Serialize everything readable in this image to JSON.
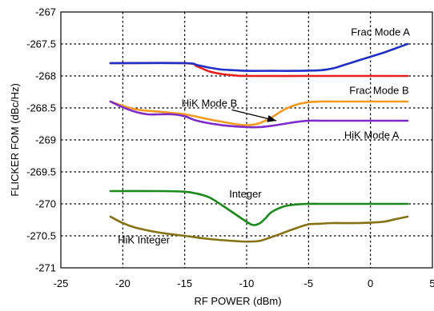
{
  "chart_data": {
    "type": "line",
    "xlabel": "RF POWER (dBm)",
    "ylabel": "FLICKER FOM (dBc/Hz)",
    "xlim": [
      -25,
      5
    ],
    "ylim": [
      -271,
      -267
    ],
    "xticks": [
      -25,
      -20,
      -15,
      -10,
      -5,
      0,
      5
    ],
    "yticks": [
      -271,
      -270.5,
      -270,
      -269.5,
      -269,
      -268.5,
      -268,
      -267.5,
      -267
    ],
    "xtick_labels": [
      "-25",
      "-20",
      "-15",
      "-10",
      "-5",
      "0",
      "5"
    ],
    "ytick_labels": [
      "-271",
      "-270.5",
      "-270",
      "-269.5",
      "-269",
      "-268.5",
      "-268",
      "-267.5",
      "-267"
    ],
    "grid": true,
    "grid_style": "dotted",
    "series": [
      {
        "name": "Frac Mode B",
        "color": "#e8201c",
        "x": [
          -21,
          -15,
          -14,
          -13,
          -12,
          -11,
          -10,
          -5,
          0,
          3
        ],
        "y": [
          -267.8,
          -267.8,
          -267.85,
          -267.93,
          -267.97,
          -267.99,
          -268,
          -268,
          -268,
          -268
        ]
      },
      {
        "name": "Frac Mode A",
        "color": "#1f2fc7",
        "x": [
          -21,
          -15,
          -14,
          -13,
          -12,
          -11,
          -10,
          -8,
          -6,
          -4,
          -3,
          -2,
          -1,
          0,
          1,
          2,
          3
        ],
        "y": [
          -267.8,
          -267.8,
          -267.83,
          -267.87,
          -267.9,
          -267.91,
          -267.92,
          -267.92,
          -267.92,
          -267.91,
          -267.88,
          -267.82,
          -267.76,
          -267.7,
          -267.64,
          -267.57,
          -267.5
        ]
      },
      {
        "name": "HiK Mode B",
        "color": "#f39a1e",
        "x": [
          -21,
          -19,
          -17,
          -15,
          -13,
          -11,
          -10,
          -9,
          -8,
          -7,
          -6,
          -5,
          -4,
          -3,
          -1,
          1,
          3
        ],
        "y": [
          -268.4,
          -268.52,
          -268.56,
          -268.6,
          -268.68,
          -268.75,
          -268.77,
          -268.74,
          -268.65,
          -268.53,
          -268.45,
          -268.41,
          -268.4,
          -268.4,
          -268.4,
          -268.4,
          -268.4
        ]
      },
      {
        "name": "HiK Mode A",
        "color": "#7f2bcc",
        "x": [
          -21,
          -20,
          -19,
          -18,
          -17,
          -16,
          -15,
          -14,
          -12,
          -10,
          -9,
          -8,
          -7,
          -6,
          -5,
          -4,
          -3,
          0,
          3
        ],
        "y": [
          -268.4,
          -268.49,
          -268.56,
          -268.6,
          -268.6,
          -268.6,
          -268.63,
          -268.7,
          -268.77,
          -268.8,
          -268.8,
          -268.78,
          -268.75,
          -268.72,
          -268.7,
          -268.7,
          -268.7,
          -268.7,
          -268.7
        ]
      },
      {
        "name": "Integer",
        "color": "#1a8a1a",
        "x": [
          -21,
          -17,
          -15,
          -14,
          -13,
          -12,
          -11,
          -10,
          -9.5,
          -9,
          -8.5,
          -8,
          -7,
          -6,
          -5,
          -4,
          0,
          3
        ],
        "y": [
          -269.8,
          -269.8,
          -269.81,
          -269.84,
          -269.9,
          -270.02,
          -270.15,
          -270.28,
          -270.33,
          -270.31,
          -270.23,
          -270.13,
          -270.04,
          -270.01,
          -270,
          -270,
          -270,
          -270
        ]
      },
      {
        "name": "HiK Integer",
        "color": "#857212",
        "x": [
          -21,
          -20,
          -19,
          -17,
          -15,
          -13,
          -11,
          -10,
          -9,
          -8,
          -7,
          -6,
          -5,
          -4,
          -3,
          -1,
          1,
          2,
          3
        ],
        "y": [
          -270.2,
          -270.3,
          -270.37,
          -270.45,
          -270.5,
          -270.55,
          -270.58,
          -270.59,
          -270.58,
          -270.52,
          -270.45,
          -270.38,
          -270.32,
          -270.31,
          -270.3,
          -270.3,
          -270.28,
          -270.24,
          -270.2
        ]
      }
    ],
    "annotations": [
      {
        "text": "Frac Mode A",
        "x": 0.8,
        "y": -267.37,
        "anchor": "middle"
      },
      {
        "text": "Frac Mode B",
        "x": 0.7,
        "y": -268.28,
        "anchor": "middle"
      },
      {
        "text": "HiK Mode B",
        "x": -13.0,
        "y": -268.48,
        "anchor": "middle"
      },
      {
        "text": "HiK Mode A",
        "x": 0.1,
        "y": -268.98,
        "anchor": "middle"
      },
      {
        "text": "Integer",
        "x": -10.1,
        "y": -269.9,
        "anchor": "middle"
      },
      {
        "text": "HiK Integer",
        "x": -18.3,
        "y": -270.62,
        "anchor": "middle"
      }
    ],
    "arrow": {
      "from": [
        -11.2,
        -268.53
      ],
      "to": [
        -7.6,
        -268.7
      ]
    }
  }
}
